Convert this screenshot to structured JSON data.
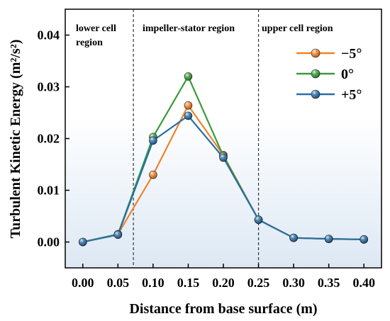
{
  "chart_data": {
    "type": "line",
    "xlabel": "Distance from base surface (m)",
    "ylabel": "Turbulent Kinetic Energy (m²/s²)",
    "xlim": [
      -0.025,
      0.425
    ],
    "ylim": [
      -0.005,
      0.045
    ],
    "xticks": [
      "0.00",
      "0.05",
      "0.10",
      "0.15",
      "0.20",
      "0.25",
      "0.30",
      "0.35",
      "0.40"
    ],
    "yticks": [
      "0.00",
      "0.01",
      "0.02",
      "0.03",
      "0.04"
    ],
    "region_boundaries": [
      0.072,
      0.25
    ],
    "regions": [
      "lower cell\nregion",
      "impeller-stator region",
      "upper cell region"
    ],
    "legend_position": "top-right",
    "series": [
      {
        "name": "−5°",
        "color": "#f0832a",
        "x": [
          0.0,
          0.05,
          0.1,
          0.15,
          0.2,
          0.25,
          0.3,
          0.35,
          0.4
        ],
        "y": [
          0.0,
          0.0015,
          0.013,
          0.0264,
          0.0168,
          0.0043,
          0.0008,
          0.0006,
          0.0005
        ]
      },
      {
        "name": "0°",
        "color": "#3a9a3a",
        "x": [
          0.0,
          0.05,
          0.1,
          0.15,
          0.2,
          0.25,
          0.3,
          0.35,
          0.4
        ],
        "y": [
          0.0,
          0.0015,
          0.0203,
          0.032,
          0.0166,
          0.0043,
          0.0008,
          0.0006,
          0.0005
        ]
      },
      {
        "name": "+5°",
        "color": "#2a6ea6",
        "x": [
          0.0,
          0.05,
          0.1,
          0.15,
          0.2,
          0.25,
          0.3,
          0.35,
          0.4
        ],
        "y": [
          0.0,
          0.0014,
          0.0196,
          0.0244,
          0.0163,
          0.0043,
          0.0008,
          0.0006,
          0.0005
        ]
      }
    ]
  }
}
